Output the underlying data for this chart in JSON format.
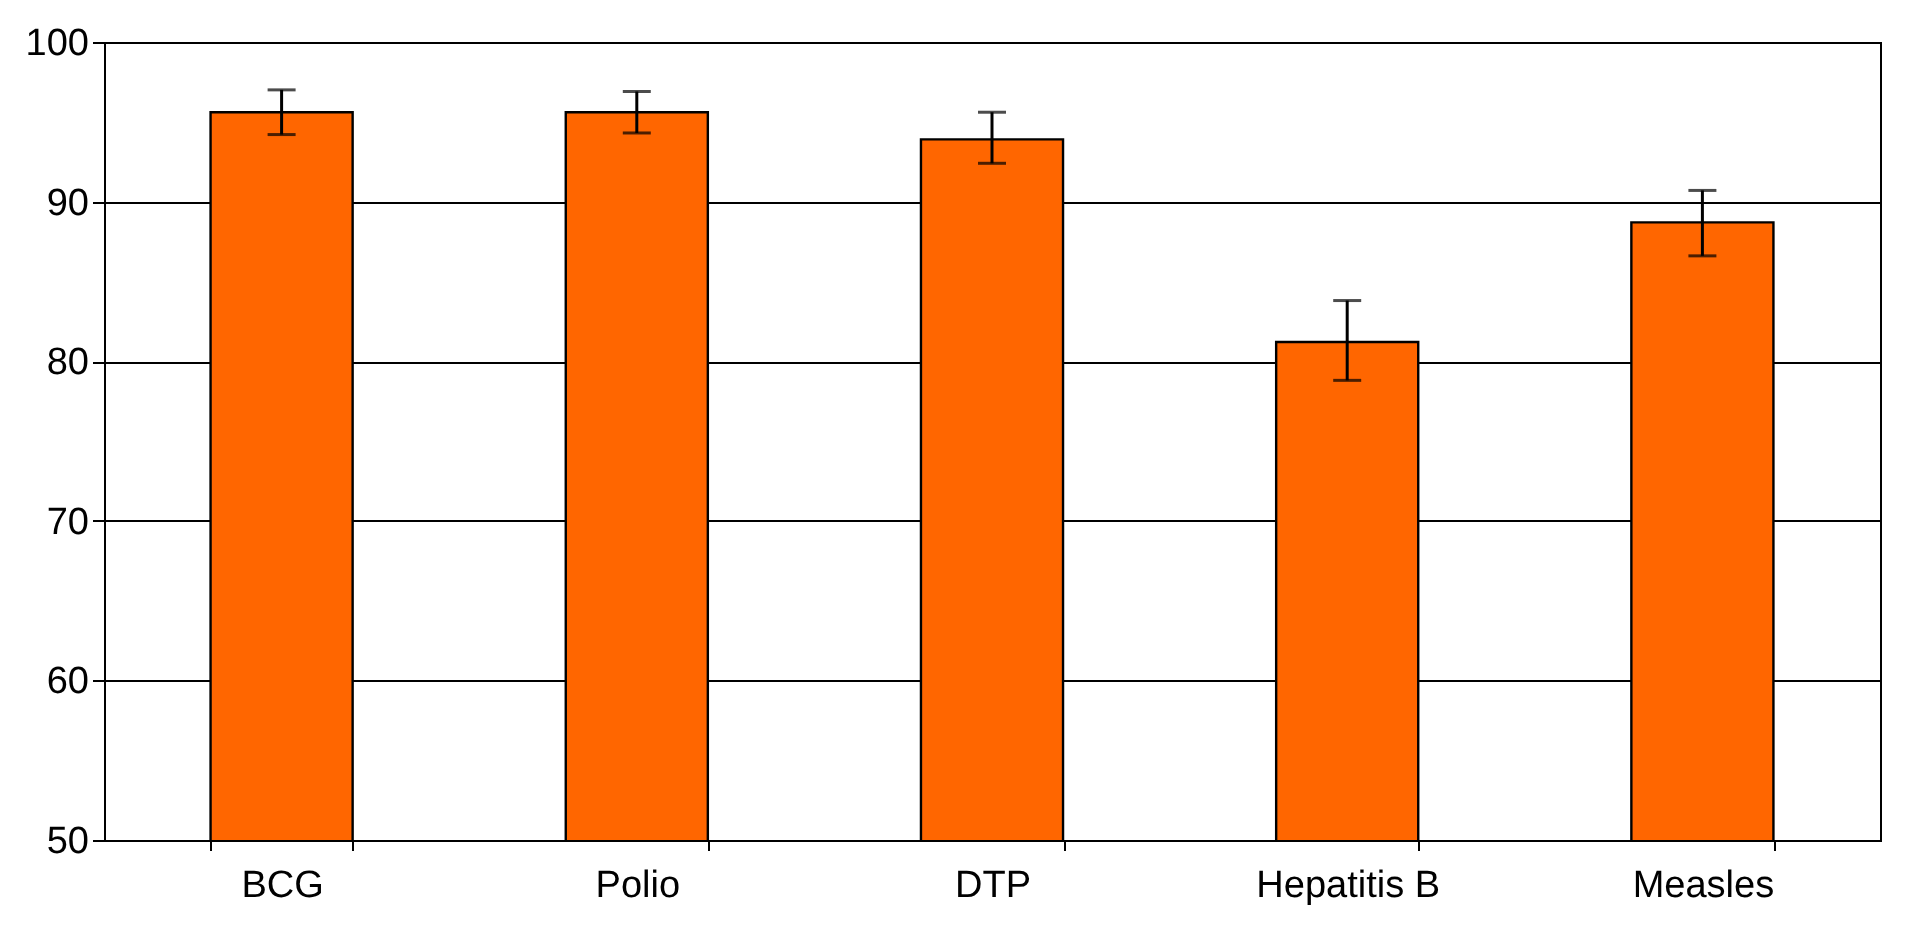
{
  "chart_data": {
    "type": "bar",
    "categories": [
      "BCG",
      "Polio",
      "DTP",
      "Hepatitis B",
      "Measles"
    ],
    "values": [
      95.6,
      95.6,
      93.9,
      81.2,
      88.7
    ],
    "errors": [
      [
        94.2,
        97.0
      ],
      [
        94.3,
        96.9
      ],
      [
        92.4,
        95.6
      ],
      [
        78.8,
        83.8
      ],
      [
        86.6,
        90.7
      ]
    ],
    "color": "#ff6600",
    "ylim": [
      50,
      100
    ],
    "yticks": [
      50,
      60,
      70,
      80,
      90,
      100
    ],
    "grid": "y"
  }
}
